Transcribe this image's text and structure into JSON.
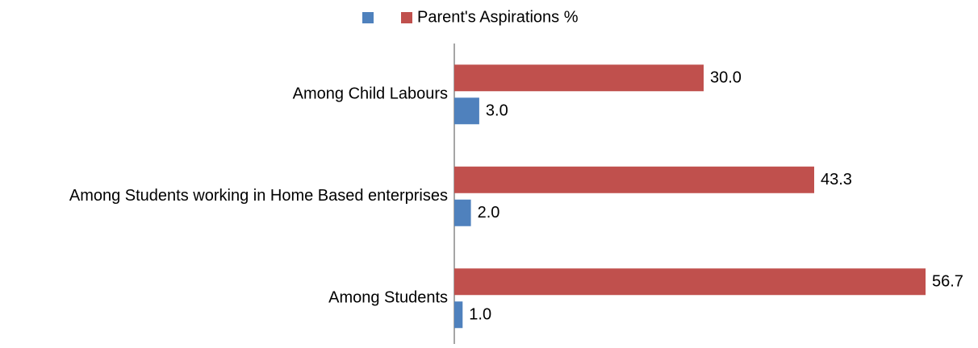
{
  "chart_data": {
    "type": "hbar",
    "categories": [
      "Among Child Labours",
      "Among Students working in Home Based enterprises",
      "Among Students"
    ],
    "series": [
      {
        "color": "#4f81bd",
        "values": [
          3,
          2,
          1
        ],
        "value_labels": [
          "3.0",
          "2.0",
          "1.0"
        ]
      },
      {
        "name": "Parent's Aspirations %",
        "color": "#c0504d",
        "values": [
          30,
          43.3,
          56.7
        ],
        "value_labels": [
          "30.0",
          "43.3",
          "56.7"
        ]
      }
    ],
    "xlim": [
      0,
      60
    ],
    "legend": "top"
  }
}
